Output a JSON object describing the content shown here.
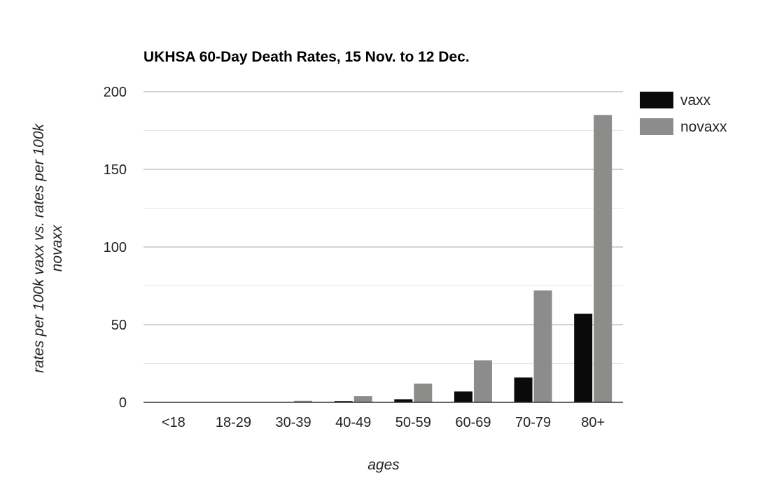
{
  "chart_data": {
    "type": "bar",
    "title": "UKHSA 60-Day Death Rates, 15 Nov. to 12 Dec.",
    "xlabel": "ages",
    "ylabel_lines": [
      "rates per 100k vaxx vs. rates per 100k",
      "novaxx"
    ],
    "categories": [
      "<18",
      "18-29",
      "30-39",
      "40-49",
      "50-59",
      "60-69",
      "70-79",
      "80+"
    ],
    "ylim": [
      0,
      200
    ],
    "y_ticks": [
      0,
      50,
      100,
      150,
      200
    ],
    "grid": true,
    "legend_position": "right",
    "series": [
      {
        "name": "vaxx",
        "color": "#0a0a0a",
        "values": [
          0,
          0,
          0.2,
          0.8,
          2,
          7,
          16,
          57
        ]
      },
      {
        "name": "novaxx",
        "color": "#8c8c8a",
        "values": [
          0,
          0,
          1,
          4,
          12,
          27,
          72,
          185
        ]
      }
    ]
  }
}
